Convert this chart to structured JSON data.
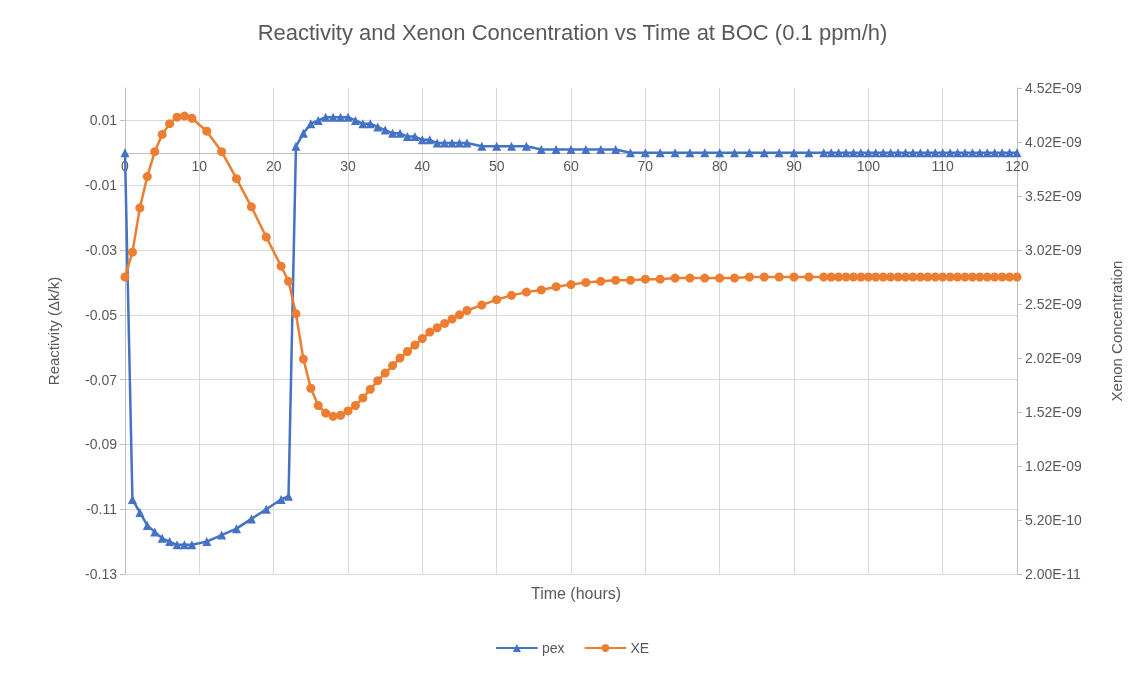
{
  "chart_data": {
    "type": "line",
    "title": "Reactivity and Xenon Concentration vs Time at BOC (0.1 ppm/h)",
    "xlabel": "Time (hours)",
    "ylabel": "Reactivity (Δk/k)",
    "y2label": "Xenon Concentration",
    "x": [
      0,
      1,
      2,
      3,
      4,
      5,
      6,
      7,
      8,
      9,
      11,
      13,
      15,
      17,
      19,
      21,
      22,
      23,
      24,
      25,
      26,
      27,
      28,
      29,
      30,
      31,
      32,
      33,
      34,
      35,
      36,
      37,
      38,
      39,
      40,
      41,
      42,
      43,
      44,
      45,
      46,
      48,
      50,
      52,
      54,
      56,
      58,
      60,
      62,
      64,
      66,
      68,
      70,
      72,
      74,
      76,
      78,
      80,
      82,
      84,
      86,
      88,
      90,
      92,
      94,
      95,
      96,
      97,
      98,
      99,
      100,
      101,
      102,
      103,
      104,
      105,
      106,
      107,
      108,
      109,
      110,
      111,
      112,
      113,
      114,
      115,
      116,
      117,
      118,
      119,
      120
    ],
    "series": [
      {
        "name": "pex",
        "color": "#4472c4",
        "marker": "triangle",
        "values": [
          0,
          -0.107,
          -0.111,
          -0.115,
          -0.117,
          -0.119,
          -0.12,
          -0.121,
          -0.121,
          -0.121,
          -0.12,
          -0.118,
          -0.116,
          -0.113,
          -0.11,
          -0.107,
          -0.106,
          0.002,
          0.006,
          0.009,
          0.01,
          0.011,
          0.011,
          0.011,
          0.011,
          0.01,
          0.009,
          0.009,
          0.008,
          0.007,
          0.006,
          0.006,
          0.005,
          0.005,
          0.004,
          0.004,
          0.003,
          0.003,
          0.003,
          0.003,
          0.003,
          0.002,
          0.002,
          0.002,
          0.002,
          0.001,
          0.001,
          0.001,
          0.001,
          0.001,
          0.001,
          0,
          0,
          0,
          0,
          0,
          0,
          0,
          0,
          0,
          0,
          0,
          0,
          0,
          0,
          0,
          0,
          0,
          0,
          0,
          0,
          0,
          0,
          0,
          0,
          0,
          0,
          0,
          0,
          0,
          0,
          0,
          0,
          0,
          0,
          0,
          0,
          0,
          0,
          0,
          0
        ]
      },
      {
        "name": "XE",
        "color": "#ed7d31",
        "marker": "circle",
        "axis": "y2",
        "values": [
          2.77e-09,
          3e-09,
          3.41e-09,
          3.7e-09,
          3.93e-09,
          4.09e-09,
          4.19e-09,
          4.25e-09,
          4.26e-09,
          4.24e-09,
          4.12e-09,
          3.93e-09,
          3.68e-09,
          3.42e-09,
          3.14e-09,
          2.87e-09,
          2.73e-09,
          2.43e-09,
          2.01e-09,
          1.74e-09,
          1.58e-09,
          1.51e-09,
          1.48e-09,
          1.49e-09,
          1.53e-09,
          1.58e-09,
          1.65e-09,
          1.73e-09,
          1.81e-09,
          1.88e-09,
          1.95e-09,
          2.02e-09,
          2.08e-09,
          2.14e-09,
          2.2e-09,
          2.26e-09,
          2.3e-09,
          2.34e-09,
          2.38e-09,
          2.42e-09,
          2.46e-09,
          2.51e-09,
          2.56e-09,
          2.6e-09,
          2.63e-09,
          2.65e-09,
          2.68e-09,
          2.7e-09,
          2.72e-09,
          2.73e-09,
          2.74e-09,
          2.74e-09,
          2.75e-09,
          2.75e-09,
          2.76e-09,
          2.76e-09,
          2.76e-09,
          2.76e-09,
          2.76e-09,
          2.77e-09,
          2.77e-09,
          2.77e-09,
          2.77e-09,
          2.77e-09,
          2.77e-09,
          2.77e-09,
          2.77e-09,
          2.77e-09,
          2.77e-09,
          2.77e-09,
          2.77e-09,
          2.77e-09,
          2.77e-09,
          2.77e-09,
          2.77e-09,
          2.77e-09,
          2.77e-09,
          2.77e-09,
          2.77e-09,
          2.77e-09,
          2.77e-09,
          2.77e-09,
          2.77e-09,
          2.77e-09,
          2.77e-09,
          2.77e-09,
          2.77e-09,
          2.77e-09,
          2.77e-09,
          2.77e-09,
          2.77e-09
        ]
      }
    ],
    "xlim": [
      0,
      120
    ],
    "xticks": [
      0,
      10,
      20,
      30,
      40,
      50,
      60,
      70,
      80,
      90,
      100,
      110,
      120
    ],
    "ylim": [
      -0.13,
      0.02
    ],
    "yticks": [
      -0.13,
      -0.11,
      -0.09,
      -0.07,
      -0.05,
      -0.03,
      -0.01,
      0.01
    ],
    "y2lim": [
      2e-11,
      4.52e-09
    ],
    "y2ticks": [
      {
        "value": 2e-11,
        "label": "2.00E-11"
      },
      {
        "value": 5.2e-10,
        "label": "5.20E-10"
      },
      {
        "value": 1.02e-09,
        "label": "1.02E-09"
      },
      {
        "value": 1.52e-09,
        "label": "1.52E-09"
      },
      {
        "value": 2.02e-09,
        "label": "2.02E-09"
      },
      {
        "value": 2.52e-09,
        "label": "2.52E-09"
      },
      {
        "value": 3.02e-09,
        "label": "3.02E-09"
      },
      {
        "value": 3.52e-09,
        "label": "3.52E-09"
      },
      {
        "value": 4.02e-09,
        "label": "4.02E-09"
      },
      {
        "value": 4.52e-09,
        "label": "4.52E-09"
      }
    ],
    "grid": true,
    "legend": "bottom",
    "line_style": "solid"
  }
}
